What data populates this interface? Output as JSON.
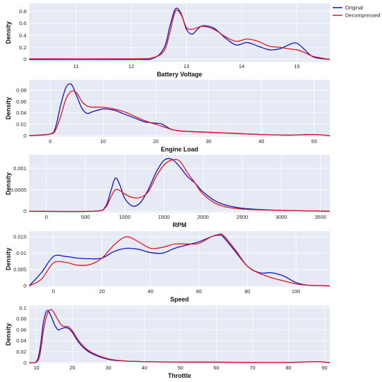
{
  "legend": {
    "position": "top-right",
    "entries": [
      {
        "label": "Original",
        "color": "#1010c0"
      },
      {
        "label": "Decompressed",
        "color": "#e8101e"
      }
    ]
  },
  "style": {
    "plot_background": "#e5eaf4",
    "grid_color": "#ffffff",
    "original_color": "#1010c0",
    "decompressed_color": "#e8101e"
  },
  "chart_data": [
    {
      "type": "line",
      "xlabel": "Battery Voltage",
      "ylabel": "Density",
      "xlim": [
        10.15,
        15.6
      ],
      "ylim": [
        -0.04,
        0.93
      ],
      "xticks": [
        11,
        12,
        13,
        14,
        15
      ],
      "xtick_labels": [
        "11",
        "12",
        "13",
        "14",
        "15"
      ],
      "yticks": [
        0,
        0.2,
        0.4,
        0.6,
        0.8
      ],
      "ytick_labels": [
        "0",
        "0.2",
        "0.4",
        "0.6",
        "0.8"
      ],
      "grid": true,
      "series": [
        {
          "name": "Original",
          "x": [
            10.15,
            12.0,
            12.4,
            12.6,
            12.7,
            12.8,
            12.9,
            13.0,
            13.1,
            13.2,
            13.3,
            13.5,
            13.7,
            13.9,
            14.1,
            14.3,
            14.5,
            14.7,
            14.9,
            15.0,
            15.1,
            15.3,
            15.6
          ],
          "y": [
            0.0,
            0.0,
            0.02,
            0.2,
            0.55,
            0.84,
            0.77,
            0.5,
            0.42,
            0.5,
            0.56,
            0.52,
            0.36,
            0.24,
            0.28,
            0.22,
            0.16,
            0.18,
            0.26,
            0.27,
            0.2,
            0.04,
            0.0
          ]
        },
        {
          "name": "Decompressed",
          "x": [
            10.15,
            12.0,
            12.4,
            12.6,
            12.7,
            12.8,
            12.9,
            13.0,
            13.1,
            13.2,
            13.3,
            13.5,
            13.7,
            13.9,
            14.1,
            14.3,
            14.5,
            14.7,
            14.9,
            15.0,
            15.1,
            15.3,
            15.6
          ],
          "y": [
            0.01,
            0.01,
            0.03,
            0.15,
            0.45,
            0.8,
            0.75,
            0.53,
            0.5,
            0.53,
            0.55,
            0.5,
            0.38,
            0.3,
            0.34,
            0.3,
            0.22,
            0.2,
            0.17,
            0.16,
            0.13,
            0.05,
            0.0
          ]
        }
      ]
    },
    {
      "type": "line",
      "xlabel": "Engine Load",
      "ylabel": "Density",
      "xlim": [
        -4,
        53
      ],
      "ylim": [
        -0.002,
        0.098
      ],
      "xticks": [
        0,
        10,
        20,
        30,
        40,
        50
      ],
      "xtick_labels": [
        "0",
        "10",
        "20",
        "30",
        "40",
        "50"
      ],
      "yticks": [
        0,
        0.02,
        0.04,
        0.06,
        0.08
      ],
      "ytick_labels": [
        "0",
        "0.02",
        "0.04",
        "0.06",
        "0.08"
      ],
      "grid": true,
      "series": [
        {
          "name": "Original",
          "x": [
            -4,
            0,
            1,
            2,
            3,
            4,
            5,
            6,
            7,
            8,
            10,
            12,
            14,
            16,
            18,
            20,
            21,
            22,
            23,
            25,
            30,
            35,
            40,
            45,
            50,
            53
          ],
          "y": [
            0.0,
            0.003,
            0.015,
            0.055,
            0.085,
            0.09,
            0.07,
            0.048,
            0.039,
            0.042,
            0.047,
            0.045,
            0.038,
            0.031,
            0.024,
            0.022,
            0.021,
            0.016,
            0.011,
            0.008,
            0.006,
            0.004,
            0.002,
            0.001,
            0.002,
            0.0
          ]
        },
        {
          "name": "Decompressed",
          "x": [
            -4,
            0,
            1,
            2,
            3,
            4,
            5,
            6,
            7,
            8,
            10,
            12,
            14,
            16,
            18,
            20,
            21,
            22,
            23,
            25,
            30,
            35,
            40,
            45,
            50,
            53
          ],
          "y": [
            0.0,
            0.003,
            0.01,
            0.035,
            0.065,
            0.078,
            0.075,
            0.06,
            0.052,
            0.05,
            0.05,
            0.047,
            0.042,
            0.034,
            0.026,
            0.02,
            0.017,
            0.014,
            0.011,
            0.008,
            0.006,
            0.004,
            0.002,
            0.001,
            0.002,
            0.0
          ]
        }
      ]
    },
    {
      "type": "line",
      "xlabel": "RPM",
      "ylabel": "Density",
      "xlim": [
        -220,
        3620
      ],
      "ylim": [
        -3e-05,
        0.00131
      ],
      "xticks": [
        0,
        500,
        1000,
        1500,
        2000,
        2500,
        3000,
        3500
      ],
      "xtick_labels": [
        "0",
        "500",
        "1000",
        "1500",
        "2000",
        "2500",
        "3000",
        "3500"
      ],
      "yticks": [
        0,
        0.0005,
        0.001
      ],
      "ytick_labels": [
        "0",
        "0.0005",
        "0.001"
      ],
      "grid": true,
      "series": [
        {
          "name": "Original",
          "x": [
            -220,
            600,
            750,
            820,
            880,
            940,
            1000,
            1100,
            1200,
            1300,
            1400,
            1500,
            1600,
            1700,
            1800,
            1900,
            2000,
            2200,
            2500,
            3000,
            3620
          ],
          "y": [
            0.0,
            0.0,
            0.0001,
            0.00045,
            0.00077,
            0.0006,
            0.0003,
            0.00012,
            0.0002,
            0.0005,
            0.0009,
            0.00118,
            0.00121,
            0.00104,
            0.00081,
            0.00065,
            0.00045,
            0.0002,
            7e-05,
            2e-05,
            0.0
          ]
        },
        {
          "name": "Decompressed",
          "x": [
            -220,
            600,
            750,
            820,
            880,
            940,
            1000,
            1100,
            1200,
            1300,
            1400,
            1500,
            1600,
            1700,
            1800,
            1900,
            2000,
            2200,
            2500,
            3000,
            3620
          ],
          "y": [
            0.0,
            0.0,
            8e-05,
            0.00032,
            0.0005,
            0.00048,
            0.0004,
            0.00032,
            0.00032,
            0.00045,
            0.0008,
            0.00107,
            0.00119,
            0.00117,
            0.0009,
            0.00065,
            0.0004,
            0.00015,
            5e-05,
            2e-05,
            0.0
          ]
        }
      ]
    },
    {
      "type": "line",
      "xlabel": "Speed",
      "ylabel": "Density",
      "xlim": [
        -10,
        114
      ],
      "ylim": [
        -0.0003,
        0.0167
      ],
      "xticks": [
        0,
        20,
        40,
        60,
        80,
        100
      ],
      "xtick_labels": [
        "0",
        "20",
        "40",
        "60",
        "80",
        "100"
      ],
      "yticks": [
        0,
        0.005,
        0.01,
        0.015
      ],
      "ytick_labels": [
        "0",
        "0.005",
        "0.01",
        "0.015"
      ],
      "grid": true,
      "series": [
        {
          "name": "Original",
          "x": [
            -10,
            -5,
            0,
            5,
            10,
            15,
            20,
            25,
            30,
            35,
            40,
            45,
            50,
            55,
            60,
            65,
            68,
            70,
            75,
            80,
            85,
            90,
            95,
            100,
            105,
            114
          ],
          "y": [
            0.0,
            0.004,
            0.009,
            0.009,
            0.0085,
            0.0083,
            0.0085,
            0.0105,
            0.0115,
            0.0112,
            0.0102,
            0.01,
            0.0115,
            0.0125,
            0.0135,
            0.015,
            0.0155,
            0.015,
            0.0105,
            0.006,
            0.004,
            0.004,
            0.003,
            0.001,
            0.0002,
            0.0
          ]
        },
        {
          "name": "Decompressed",
          "x": [
            -10,
            -5,
            0,
            5,
            10,
            15,
            20,
            25,
            30,
            35,
            40,
            45,
            50,
            55,
            60,
            65,
            68,
            70,
            75,
            80,
            85,
            90,
            95,
            100,
            105,
            114
          ],
          "y": [
            0.0,
            0.002,
            0.007,
            0.0072,
            0.0063,
            0.0065,
            0.0085,
            0.0125,
            0.015,
            0.0135,
            0.0115,
            0.0118,
            0.0128,
            0.0128,
            0.013,
            0.015,
            0.0157,
            0.0155,
            0.011,
            0.006,
            0.0038,
            0.0025,
            0.0015,
            0.0006,
            0.0002,
            0.0
          ]
        }
      ]
    },
    {
      "type": "line",
      "xlabel": "Throttle",
      "ylabel": "Density",
      "xlim": [
        8,
        91.5
      ],
      "ylim": [
        -0.001,
        0.104
      ],
      "xticks": [
        10,
        20,
        30,
        40,
        50,
        60,
        70,
        80,
        90
      ],
      "xtick_labels": [
        "10",
        "20",
        "30",
        "40",
        "50",
        "60",
        "70",
        "80",
        "90"
      ],
      "yticks": [
        0,
        0.02,
        0.04,
        0.06,
        0.08,
        0.1
      ],
      "ytick_labels": [
        "0",
        "0.02",
        "0.04",
        "0.06",
        "0.08",
        "0.1"
      ],
      "grid": true,
      "series": [
        {
          "name": "Original",
          "x": [
            8,
            10,
            11,
            12,
            13,
            14,
            15,
            16,
            17,
            18,
            19,
            20,
            22,
            25,
            30,
            35,
            40,
            50,
            60,
            70,
            80,
            88,
            91.5
          ],
          "y": [
            0.0,
            0.002,
            0.025,
            0.075,
            0.095,
            0.086,
            0.07,
            0.06,
            0.062,
            0.064,
            0.062,
            0.055,
            0.035,
            0.018,
            0.006,
            0.003,
            0.002,
            0.001,
            0.001,
            0.0005,
            0.0005,
            0.002,
            0.0
          ]
        },
        {
          "name": "Decompressed",
          "x": [
            8,
            10,
            11,
            12,
            13,
            14,
            15,
            16,
            17,
            18,
            19,
            20,
            22,
            25,
            30,
            35,
            40,
            50,
            60,
            70,
            80,
            88,
            91.5
          ],
          "y": [
            0.0,
            0.001,
            0.015,
            0.06,
            0.088,
            0.097,
            0.09,
            0.078,
            0.068,
            0.066,
            0.065,
            0.058,
            0.038,
            0.02,
            0.007,
            0.003,
            0.002,
            0.001,
            0.001,
            0.0005,
            0.0005,
            0.002,
            0.0
          ]
        }
      ]
    }
  ]
}
